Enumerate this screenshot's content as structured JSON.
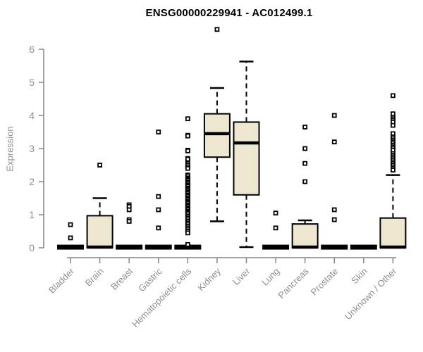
{
  "title": "ENSG00000229941 - AC012499.1",
  "colors": {
    "background": "#ffffff",
    "box_fill": "#ede7cf",
    "box_stroke": "#000000",
    "median": "#000000",
    "whisker": "#000000",
    "outlier_stroke": "#000000",
    "outlier_fill": "#ffffff",
    "axis_line": "#858585",
    "axis_text": "#8f8f8f",
    "title_text": "#000000"
  },
  "chart_data": {
    "type": "boxplot",
    "title": "ENSG00000229941 - AC012499.1",
    "xlabel": "",
    "ylabel": "Expression",
    "ylim": [
      0,
      6.7
    ],
    "yticks": [
      0,
      1,
      2,
      3,
      4,
      5,
      6
    ],
    "grid": false,
    "legend": null,
    "categories": [
      "Bladder",
      "Brain",
      "Breast",
      "Gastric",
      "Hematopoietic cells",
      "Kidney",
      "Liver",
      "Lung",
      "Pancreas",
      "Prostate",
      "Skin",
      "Unknown / Other"
    ],
    "series": [
      {
        "name": "Bladder",
        "q1": 0,
        "median": 0.02,
        "q3": 0.04,
        "whisker_low": 0,
        "whisker_high": 0.04,
        "outliers": [
          0.7,
          0.3
        ]
      },
      {
        "name": "Brain",
        "q1": 0,
        "median": 0.02,
        "q3": 0.97,
        "whisker_low": 0,
        "whisker_high": 1.5,
        "outliers": [
          2.5
        ]
      },
      {
        "name": "Breast",
        "q1": 0,
        "median": 0.02,
        "q3": 0.04,
        "whisker_low": 0,
        "whisker_high": 0.04,
        "outliers": [
          1.3,
          1.25,
          1.15,
          0.85,
          0.8
        ]
      },
      {
        "name": "Gastric",
        "q1": 0,
        "median": 0.02,
        "q3": 0.04,
        "whisker_low": 0,
        "whisker_high": 0.04,
        "outliers": [
          3.5,
          1.55,
          1.15,
          0.6
        ]
      },
      {
        "name": "Hematopoietic cells",
        "q1": 0,
        "median": 0.02,
        "q3": 0.04,
        "whisker_low": 0,
        "whisker_high": 0.04,
        "outliers": [
          3.9,
          3.4,
          3.38,
          2.95,
          2.93,
          2.7,
          2.68,
          2.55,
          2.5,
          2.45,
          2.4,
          2.2,
          2.15,
          2.1,
          2.07,
          2.05,
          2.0,
          1.97,
          1.95,
          1.9,
          1.87,
          1.85,
          1.8,
          1.77,
          1.75,
          1.7,
          1.67,
          1.65,
          1.6,
          1.57,
          1.55,
          1.5,
          1.47,
          1.45,
          1.4,
          1.37,
          1.35,
          1.3,
          1.27,
          1.25,
          1.2,
          1.17,
          1.15,
          1.1,
          1.07,
          1.05,
          1.0,
          0.95,
          0.9,
          0.85,
          0.8,
          0.75,
          0.7,
          0.65,
          0.6,
          0.55,
          0.5,
          0.45,
          0.1
        ]
      },
      {
        "name": "Kidney",
        "q1": 2.74,
        "median": 3.45,
        "q3": 4.05,
        "whisker_low": 0.8,
        "whisker_high": 4.83,
        "outliers": [
          6.6
        ]
      },
      {
        "name": "Liver",
        "q1": 1.6,
        "median": 3.17,
        "q3": 3.8,
        "whisker_low": 0.02,
        "whisker_high": 5.63,
        "outliers": []
      },
      {
        "name": "Lung",
        "q1": 0,
        "median": 0.02,
        "q3": 0.04,
        "whisker_low": 0,
        "whisker_high": 0.04,
        "outliers": [
          1.05,
          0.6
        ]
      },
      {
        "name": "Pancreas",
        "q1": 0,
        "median": 0.02,
        "q3": 0.72,
        "whisker_low": 0,
        "whisker_high": 0.83,
        "outliers": [
          3.65,
          3.0,
          2.55,
          2.0
        ]
      },
      {
        "name": "Prostate",
        "q1": 0,
        "median": 0.02,
        "q3": 0.04,
        "whisker_low": 0,
        "whisker_high": 0.04,
        "outliers": [
          4.0,
          3.2,
          1.15,
          0.85
        ]
      },
      {
        "name": "Skin",
        "q1": 0,
        "median": 0.02,
        "q3": 0.04,
        "whisker_low": 0,
        "whisker_high": 0.04,
        "outliers": []
      },
      {
        "name": "Unknown / Other",
        "q1": 0,
        "median": 0.02,
        "q3": 0.9,
        "whisker_low": 0,
        "whisker_high": 2.2,
        "outliers": [
          4.6,
          4.05,
          3.95,
          3.9,
          3.85,
          3.8,
          3.7,
          3.45,
          3.35,
          3.3,
          3.25,
          3.2,
          3.15,
          3.1,
          3.05,
          3.0,
          2.95,
          2.85,
          2.8,
          2.75,
          2.7,
          2.65,
          2.6,
          2.55,
          2.5,
          2.45,
          2.4,
          2.35
        ]
      }
    ]
  }
}
